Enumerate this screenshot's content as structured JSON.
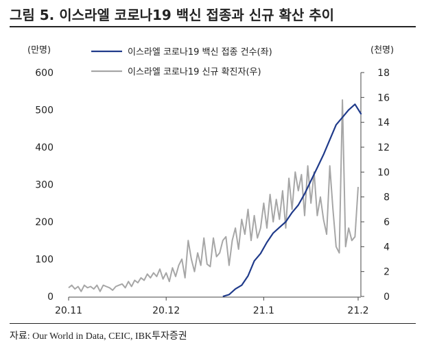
{
  "header": {
    "title": "그림 5. 이스라엘 코로나19 백신 접종과 신규 확산 추이"
  },
  "footer": {
    "source": "자료: Our World in Data, CEIC, IBK투자증권"
  },
  "chart_data": {
    "type": "line",
    "left_axis": {
      "unit_label": "(만명)",
      "ylim": [
        0,
        600
      ],
      "ticks": [
        "0",
        "100",
        "200",
        "300",
        "400",
        "500",
        "600"
      ]
    },
    "right_axis": {
      "unit_label": "(천명)",
      "ylim": [
        0,
        18
      ],
      "ticks": [
        "0",
        "2",
        "4",
        "6",
        "8",
        "10",
        "12",
        "14",
        "16",
        "18"
      ]
    },
    "x_axis": {
      "range": [
        0,
        92
      ],
      "tick_positions": [
        0,
        31,
        62,
        92
      ],
      "tick_labels": [
        "20.11",
        "20.12",
        "21.1",
        "21.2"
      ]
    },
    "legend_position": "top-center",
    "grid": false,
    "series": [
      {
        "name": "이스라엘 코로나19 백신 접종 건수(좌)",
        "axis": "left",
        "color": "#1f3a8a",
        "x": [
          49,
          51,
          53,
          55,
          57,
          59,
          61,
          63,
          65,
          67,
          69,
          71,
          73,
          75,
          77,
          79,
          81,
          83,
          85,
          87,
          89,
          91,
          93
        ],
        "values": [
          0,
          5,
          20,
          30,
          55,
          95,
          115,
          145,
          170,
          185,
          200,
          225,
          245,
          275,
          310,
          345,
          380,
          420,
          460,
          480,
          500,
          515,
          488
        ]
      },
      {
        "name": "이스라엘 코로나19 신규 확진자(우)",
        "axis": "right",
        "color": "#a6a6a6",
        "x": [
          0,
          1,
          2,
          3,
          4,
          5,
          6,
          7,
          8,
          9,
          10,
          11,
          12,
          13,
          14,
          15,
          16,
          17,
          18,
          19,
          20,
          21,
          22,
          23,
          24,
          25,
          26,
          27,
          28,
          29,
          30,
          31,
          32,
          33,
          34,
          35,
          36,
          37,
          38,
          39,
          40,
          41,
          42,
          43,
          44,
          45,
          46,
          47,
          48,
          49,
          50,
          51,
          52,
          53,
          54,
          55,
          56,
          57,
          58,
          59,
          60,
          61,
          62,
          63,
          64,
          65,
          66,
          67,
          68,
          69,
          70,
          71,
          72,
          73,
          74,
          75,
          76,
          77,
          78,
          79,
          80,
          81,
          82,
          83,
          84,
          85,
          86,
          87,
          88,
          89,
          90,
          91,
          92
        ],
        "values": [
          0.7,
          0.9,
          0.6,
          0.8,
          0.4,
          0.9,
          0.7,
          0.8,
          0.6,
          0.9,
          0.4,
          0.9,
          0.8,
          0.7,
          0.5,
          0.8,
          0.9,
          1.0,
          0.7,
          1.2,
          0.8,
          1.3,
          1.1,
          1.5,
          1.3,
          1.8,
          1.5,
          1.9,
          1.6,
          2.2,
          1.4,
          1.9,
          1.2,
          2.3,
          1.6,
          2.5,
          3.0,
          1.5,
          4.5,
          3.0,
          2.0,
          3.5,
          2.5,
          4.7,
          2.6,
          2.4,
          4.7,
          3.2,
          3.5,
          4.5,
          4.8,
          2.5,
          4.5,
          5.5,
          3.8,
          6.2,
          5.0,
          7.0,
          4.5,
          6.5,
          4.7,
          5.5,
          7.5,
          5.5,
          8.2,
          6.0,
          7.8,
          6.2,
          8.5,
          5.5,
          9.5,
          7.0,
          10.0,
          8.5,
          9.8,
          6.5,
          10.5,
          7.5,
          10.0,
          6.5,
          8.0,
          6.2,
          5.0,
          10.5,
          7.0,
          4.0,
          3.5,
          15.8,
          4.0,
          5.5,
          4.5,
          4.8,
          8.8
        ]
      }
    ]
  }
}
